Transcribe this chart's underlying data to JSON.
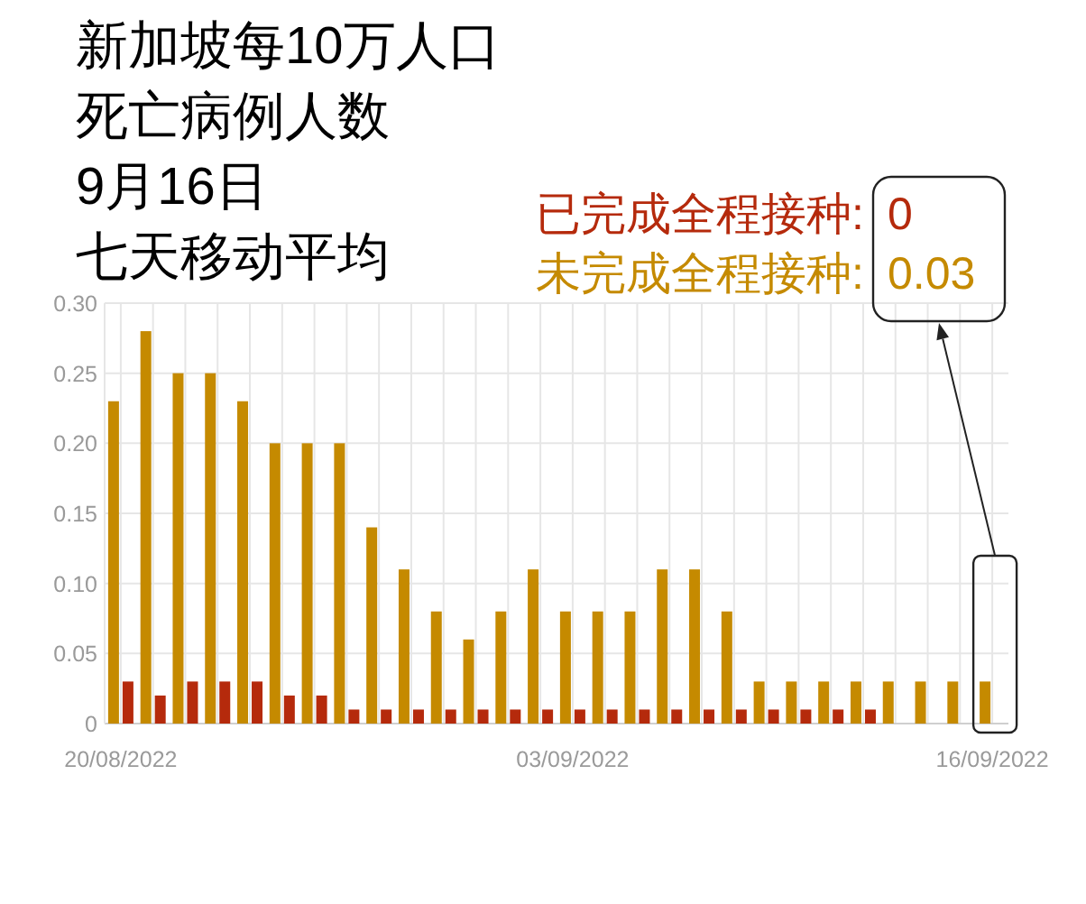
{
  "chart_data": {
    "type": "bar",
    "title": "新加坡每10万人口死亡病例人数",
    "subtitle": "9月16日",
    "ylabel": "七天移动平均",
    "categories": [
      "20/08/2022",
      null,
      null,
      null,
      null,
      null,
      null,
      null,
      null,
      null,
      null,
      null,
      null,
      null,
      "03/09/2022",
      null,
      null,
      null,
      null,
      null,
      null,
      null,
      null,
      null,
      null,
      null,
      null,
      "16/09/2022"
    ],
    "series": [
      {
        "name": "未完成全程接种:",
        "color": "#c58a00",
        "values": [
          0.23,
          0.28,
          0.25,
          0.25,
          0.23,
          0.2,
          0.2,
          0.2,
          0.14,
          0.11,
          0.08,
          0.06,
          0.08,
          0.11,
          0.08,
          0.08,
          0.08,
          0.11,
          0.11,
          0.08,
          0.03,
          0.03,
          0.03,
          0.03,
          0.03,
          0.03,
          0.03,
          0.03
        ]
      },
      {
        "name": "已完成全程接种:",
        "color": "#b52a0c",
        "values": [
          0.03,
          0.02,
          0.03,
          0.03,
          0.03,
          0.02,
          0.02,
          0.01,
          0.01,
          0.01,
          0.01,
          0.01,
          0.01,
          0.01,
          0.01,
          0.01,
          0.01,
          0.01,
          0.01,
          0.01,
          0.01,
          0.01,
          0.01,
          0.01,
          0,
          0,
          0,
          0
        ]
      }
    ],
    "ylim": [
      0,
      0.3
    ],
    "yticks": [
      0,
      0.05,
      {
        "value": 0.1,
        "label": "0.10"
      },
      0.15,
      {
        "value": 0.2,
        "label": "0.20"
      },
      0.25,
      {
        "value": 0.3,
        "label": "0.30"
      }
    ],
    "grid": true,
    "legend": "top right",
    "annotations": [
      "0",
      "0.03"
    ]
  }
}
